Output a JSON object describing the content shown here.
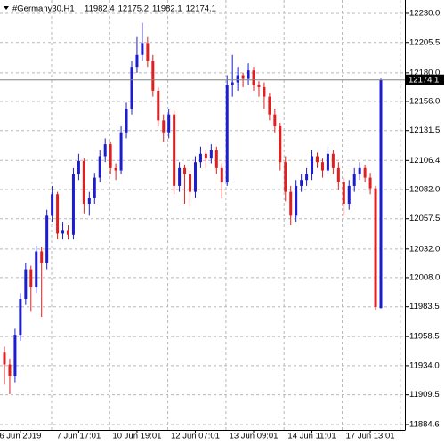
{
  "chart_data": {
    "type": "candlestick",
    "title": "#Germany30,H1",
    "up_color": "#1c1cd0",
    "down_color": "#e02020",
    "grid": true,
    "categories": [
      null,
      null,
      null,
      "6 Jun 2019",
      null,
      null,
      null,
      null,
      null,
      null,
      null,
      null,
      null,
      null,
      "7 Jun 17:01",
      null,
      null,
      null,
      null,
      null,
      null,
      null,
      null,
      null,
      null,
      "10 Jun 19:01",
      null,
      null,
      null,
      null,
      null,
      null,
      null,
      null,
      null,
      null,
      "12 Jun 07:01",
      null,
      null,
      null,
      null,
      null,
      null,
      null,
      null,
      null,
      null,
      "13 Jun 09:01",
      null,
      null,
      null,
      null,
      null,
      null,
      null,
      null,
      null,
      null,
      "14 Jun 11:01",
      null,
      null,
      null,
      null,
      null,
      null,
      null,
      null,
      null,
      null,
      "17 Jun 13:01",
      null,
      null
    ],
    "open": [
      11945,
      11935,
      11925,
      11960,
      11990,
      12015,
      12000,
      12030,
      12020,
      12060,
      12078,
      12045,
      12048,
      12044,
      12095,
      12106,
      12070,
      12075,
      12092,
      12110,
      12120,
      12100,
      12098,
      12130,
      12150,
      12185,
      12195,
      12205,
      12190,
      12165,
      12140,
      12130,
      12145,
      12085,
      12100,
      12095,
      12080,
      12105,
      12112,
      12108,
      12115,
      12100,
      12088,
      12170,
      12172,
      12178,
      12175,
      12182,
      12170,
      12168,
      12160,
      12145,
      12135,
      12105,
      12080,
      12060,
      12085,
      12090,
      12095,
      12110,
      12105,
      12098,
      12112,
      12100,
      12088,
      12070,
      12085,
      12095,
      12100,
      12092,
      12083,
      11982.4
    ],
    "high": [
      11950,
      11940,
      11965,
      11995,
      12020,
      12018,
      12035,
      12034,
      12065,
      12085,
      12080,
      12055,
      12052,
      12100,
      12112,
      12108,
      12080,
      12096,
      12115,
      12125,
      12122,
      12104,
      12135,
      12155,
      12190,
      12210,
      12222,
      12210,
      12195,
      12168,
      12145,
      12150,
      12148,
      12105,
      12103,
      12098,
      12110,
      12118,
      12115,
      12120,
      12118,
      12104,
      12178,
      12195,
      12185,
      12180,
      12188,
      12185,
      12173,
      12172,
      12163,
      12150,
      12138,
      12110,
      12085,
      12090,
      12095,
      12100,
      12115,
      12113,
      12108,
      12118,
      12115,
      12105,
      12092,
      12090,
      12100,
      12105,
      12103,
      12096,
      12085,
      12175.2
    ],
    "low": [
      11918,
      11910,
      11920,
      11955,
      11985,
      11980,
      11995,
      11975,
      12015,
      12055,
      12040,
      12040,
      12040,
      12040,
      12090,
      12062,
      12060,
      12070,
      12088,
      12105,
      12095,
      12090,
      12095,
      12125,
      12145,
      12180,
      12190,
      12185,
      12160,
      12135,
      12122,
      12125,
      12078,
      12080,
      12070,
      12068,
      12075,
      12100,
      12100,
      12104,
      12095,
      12075,
      12085,
      12160,
      12165,
      12168,
      12170,
      12165,
      12160,
      12150,
      12140,
      12130,
      12098,
      12072,
      12052,
      12055,
      12080,
      12085,
      12090,
      12100,
      12092,
      12095,
      12095,
      12082,
      12060,
      12065,
      12080,
      12090,
      12088,
      12078,
      11981,
      11982.1
    ],
    "close": [
      11935,
      11925,
      11960,
      11990,
      12015,
      12000,
      12030,
      12020,
      12060,
      12078,
      12045,
      12048,
      12044,
      12095,
      12106,
      12070,
      12075,
      12092,
      12110,
      12120,
      12100,
      12098,
      12130,
      12150,
      12185,
      12195,
      12205,
      12190,
      12165,
      12140,
      12130,
      12145,
      12085,
      12100,
      12095,
      12080,
      12105,
      12112,
      12108,
      12115,
      12100,
      12088,
      12170,
      12172,
      12178,
      12175,
      12182,
      12170,
      12168,
      12160,
      12145,
      12135,
      12105,
      12080,
      12060,
      12085,
      12090,
      12095,
      12110,
      12105,
      12098,
      12112,
      12100,
      12088,
      12070,
      12085,
      12095,
      12100,
      12092,
      12083,
      11983.3,
      12174.1
    ],
    "ylim": [
      11880.1,
      12241.2
    ],
    "yticks": [
      {
        "value": 12230,
        "label": "12230.0"
      },
      12205.5,
      {
        "value": 12180,
        "label": "12180.0"
      },
      {
        "value": 12156,
        "label": "12156.0"
      },
      12131.5,
      12106.4,
      {
        "value": 12082,
        "label": "12082.0"
      },
      12057.5,
      {
        "value": 12032,
        "label": "12032.0"
      },
      {
        "value": 12008,
        "label": "12008.0"
      },
      11983.5,
      11958.5,
      {
        "value": 11934,
        "label": "11934.0"
      },
      11909.5,
      11884.6
    ]
  }
}
